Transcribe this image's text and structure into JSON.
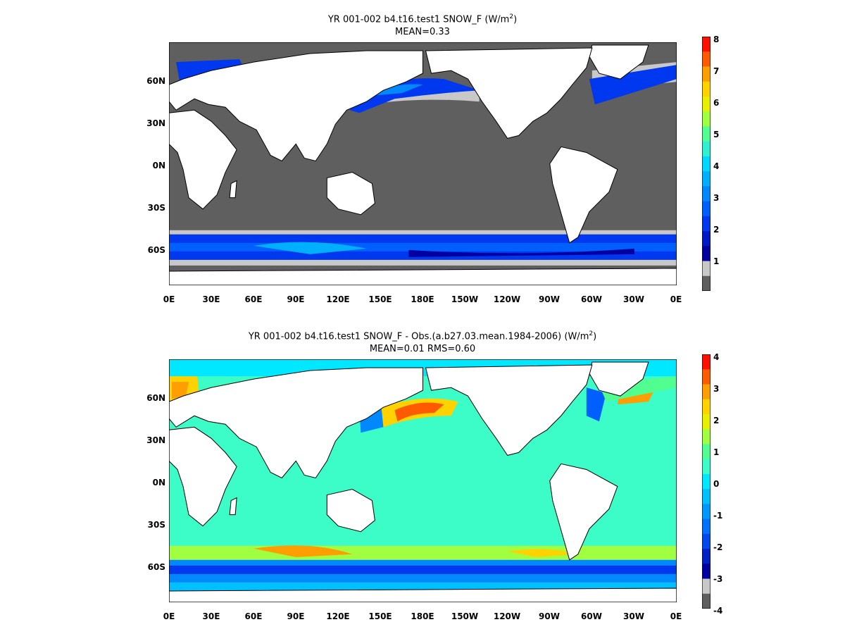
{
  "colors": {
    "ocean_zero": "#5f5f5f",
    "light_gray": "#c8c8c8",
    "anomaly_base": "#3cfcc8",
    "land": "#ffffff",
    "coast": "#000000"
  },
  "top": {
    "title_main": "YR 001-002 b4.t16.test1  SNOW_F (W/m",
    "title_sup": "2",
    "title_close": ")",
    "subtitle": "MEAN=0.33",
    "colorbar_labels": [
      "8",
      "7",
      "6",
      "5",
      "4",
      "3",
      "2",
      "1"
    ],
    "colorbar_colors": [
      "#ff1000",
      "#ff5a00",
      "#ff9e00",
      "#ffd200",
      "#e6f000",
      "#a0ff40",
      "#50ff90",
      "#30f0d0",
      "#00d8ff",
      "#00b0ff",
      "#0088ff",
      "#0060ff",
      "#0038f0",
      "#0018c8",
      "#0000a0",
      "#c8c8c8",
      "#5f5f5f"
    ]
  },
  "bottom": {
    "title_main": "YR 001-002 b4.t16.test1 SNOW_F - Obs.(a.b27.03.mean.1984-2006) (W/m",
    "title_sup": "2",
    "title_close": ")",
    "subtitle": "MEAN=0.01 RMS=0.60",
    "colorbar_labels": [
      "4",
      "3",
      "2",
      "1",
      "0",
      "-1",
      "-2",
      "-3",
      "-4"
    ],
    "colorbar_colors": [
      "#ff1000",
      "#ff5a00",
      "#ff9e00",
      "#ffd200",
      "#e6f000",
      "#a0ff40",
      "#50ff90",
      "#3cfcc8",
      "#00e8ff",
      "#00c0ff",
      "#0098ff",
      "#0070ff",
      "#0048f0",
      "#0020c8",
      "#0000a0",
      "#c8c8c8",
      "#5f5f5f"
    ]
  },
  "lat_labels": [
    "60N",
    "30N",
    "0N",
    "30S",
    "60S"
  ],
  "lon_labels": [
    "0E",
    "30E",
    "60E",
    "90E",
    "120E",
    "150E",
    "180E",
    "150W",
    "120W",
    "90W",
    "60W",
    "30W",
    "0E"
  ]
}
